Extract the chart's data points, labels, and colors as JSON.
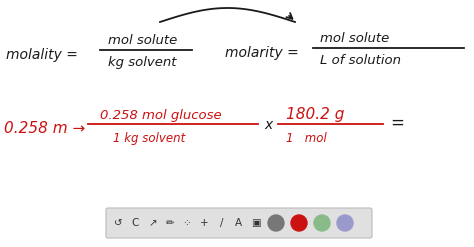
{
  "background_color": "#ffffff",
  "toolbar_color": "#e0e0e0",
  "black": "#1a1a1a",
  "red": "#cc1111",
  "frac1_num": "mol solute",
  "frac1_den": "kg solvent",
  "frac2_num": "mol solute",
  "frac2_den": "L of solution",
  "molality_text": "molality =",
  "molarity_text": "molarity =",
  "row2_prefix": "0.258 m →",
  "row2_f1_num": "0.258 mol glucose",
  "row2_f1_den": "1 kg solvent",
  "row2_times": "x",
  "row2_f2_num": "180.2 g",
  "row2_f2_den": "1   mol",
  "row2_equals": "=",
  "toolbar_circles": [
    "#777777",
    "#cc1111",
    "#88bb88",
    "#9999cc"
  ],
  "arrow_color": "#1a1a1a"
}
